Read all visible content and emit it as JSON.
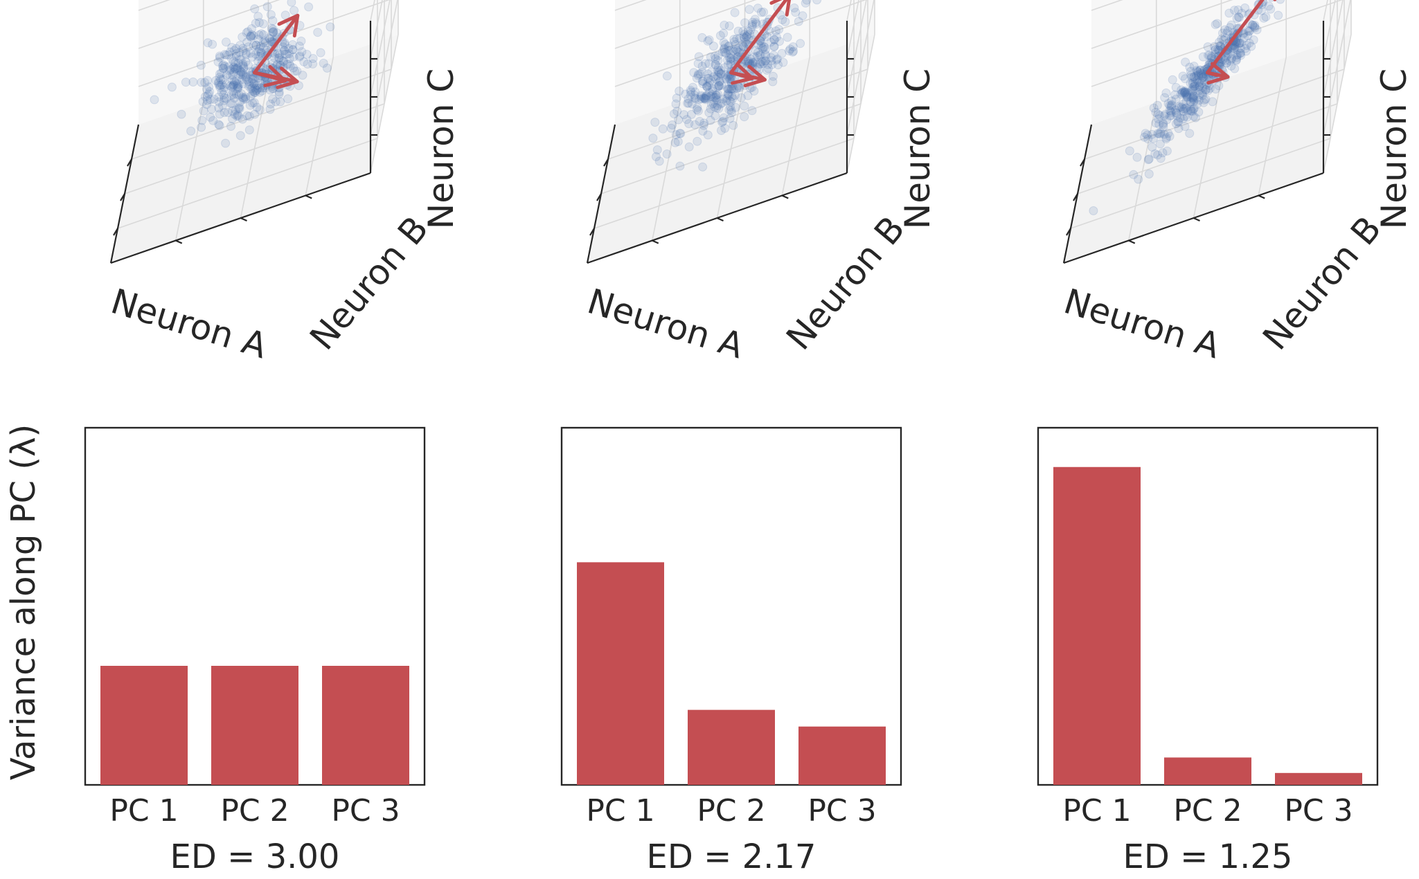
{
  "chart_data": {
    "type": "bar",
    "ylabel": "Variance along PC (λ)",
    "categories": [
      "PC 1",
      "PC 2",
      "PC 3"
    ],
    "bar_color": "#c44e52",
    "arrow_color": "#c44e52",
    "scatter_color": "#4c72b0",
    "grid": false,
    "panels": [
      {
        "xlabel": "ED = 3.00",
        "values": [
          1.0,
          1.0,
          1.0
        ]
      },
      {
        "xlabel": "ED = 2.17",
        "values": [
          1.87,
          0.63,
          0.49
        ]
      },
      {
        "xlabel": "ED = 1.25",
        "values": [
          2.67,
          0.23,
          0.1
        ]
      }
    ],
    "ylim": [
      0,
      3.0
    ],
    "scatter_3d": {
      "axis_labels": [
        "Neuron A",
        "Neuron B",
        "Neuron C"
      ],
      "n_points": 400,
      "point_alpha": 0.15,
      "pane_color": "#f2f2f2",
      "grid": true
    }
  }
}
